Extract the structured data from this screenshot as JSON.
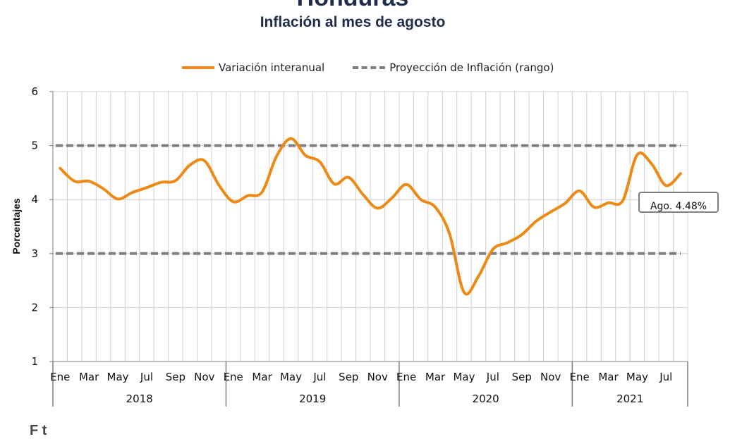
{
  "header": {
    "title": "Honduras",
    "subtitle": "Inflación al mes de agosto"
  },
  "legend": {
    "series_label": "Variación interanual",
    "range_label": "Proyección de Inflación (rango)"
  },
  "callout": {
    "text": "Ago. 4.48%"
  },
  "footer": {
    "source_partial": "F t"
  },
  "colors": {
    "series": "#ec8a15",
    "range": "#808080",
    "grid": "#d0d0d0",
    "axis": "#7f7f7f"
  },
  "chart_data": {
    "type": "line",
    "title": "Inflación al mes de agosto",
    "ylabel": "Porcentajes",
    "ylim": [
      1,
      6
    ],
    "yticks": [
      1,
      2,
      3,
      4,
      5,
      6
    ],
    "grid": true,
    "legend_position": "top",
    "month_tick_labels": [
      "Ene",
      "Mar",
      "May",
      "Jul",
      "Sep",
      "Nov",
      "Ene",
      "Mar",
      "May",
      "Jul",
      "Sep",
      "Nov",
      "Ene",
      "Mar",
      "May",
      "Jul",
      "Sep",
      "Nov",
      "Ene",
      "Mar",
      "May",
      "Jul"
    ],
    "years": [
      {
        "label": "2018",
        "months": 12
      },
      {
        "label": "2019",
        "months": 12
      },
      {
        "label": "2020",
        "months": 12
      },
      {
        "label": "2021",
        "months": 8
      }
    ],
    "series": [
      {
        "name": "Variación interanual",
        "style": "solid",
        "values": [
          4.58,
          4.34,
          4.34,
          4.2,
          4.01,
          4.13,
          4.22,
          4.32,
          4.35,
          4.64,
          4.72,
          4.27,
          3.96,
          4.07,
          4.14,
          4.8,
          5.13,
          4.82,
          4.7,
          4.29,
          4.41,
          4.09,
          3.84,
          4.03,
          4.28,
          4.0,
          3.86,
          3.36,
          2.28,
          2.58,
          3.08,
          3.2,
          3.35,
          3.6,
          3.77,
          3.93,
          4.16,
          3.86,
          3.94,
          3.98,
          4.83,
          4.66,
          4.26,
          4.48
        ]
      },
      {
        "name": "Proyección de Inflación (rango)",
        "style": "dashed",
        "values_constant": [
          3,
          5
        ]
      }
    ]
  }
}
